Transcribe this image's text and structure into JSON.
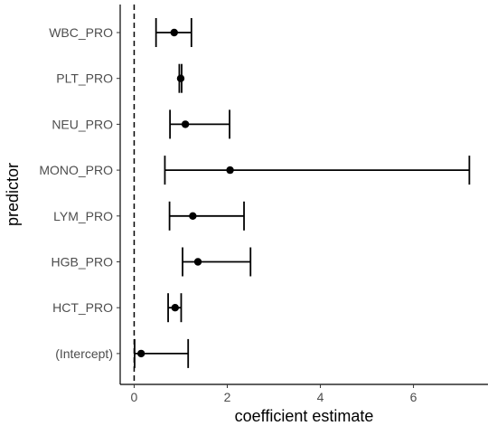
{
  "chart_data": {
    "type": "scatter",
    "subtype": "coefficient-plot",
    "title": "",
    "xlabel": "coefficient estimate",
    "ylabel": "predictor",
    "xlim": [
      -0.3,
      7.6
    ],
    "x_ticks": [
      0,
      2,
      4,
      6
    ],
    "reference_line": {
      "x": 0,
      "style": "dashed"
    },
    "grid": false,
    "legend": "none",
    "colors": {
      "points": "#000000",
      "text": "#4d4d4d",
      "axis": "#000000"
    },
    "categories": [
      "WBC_PRO",
      "PLT_PRO",
      "NEU_PRO",
      "MONO_PRO",
      "LYM_PRO",
      "HGB_PRO",
      "HCT_PRO",
      "(Intercept)"
    ],
    "points": [
      {
        "predictor": "WBC_PRO",
        "estimate": 0.86,
        "lower": 0.47,
        "upper": 1.23
      },
      {
        "predictor": "PLT_PRO",
        "estimate": 1.0,
        "lower": 0.97,
        "upper": 1.02
      },
      {
        "predictor": "NEU_PRO",
        "estimate": 1.1,
        "lower": 0.77,
        "upper": 2.05
      },
      {
        "predictor": "MONO_PRO",
        "estimate": 2.06,
        "lower": 0.66,
        "upper": 7.2
      },
      {
        "predictor": "LYM_PRO",
        "estimate": 1.26,
        "lower": 0.76,
        "upper": 2.36
      },
      {
        "predictor": "HGB_PRO",
        "estimate": 1.37,
        "lower": 1.04,
        "upper": 2.5
      },
      {
        "predictor": "HCT_PRO",
        "estimate": 0.88,
        "lower": 0.73,
        "upper": 1.01
      },
      {
        "predictor": "(Intercept)",
        "estimate": 0.15,
        "lower": 0.01,
        "upper": 1.16
      }
    ]
  }
}
